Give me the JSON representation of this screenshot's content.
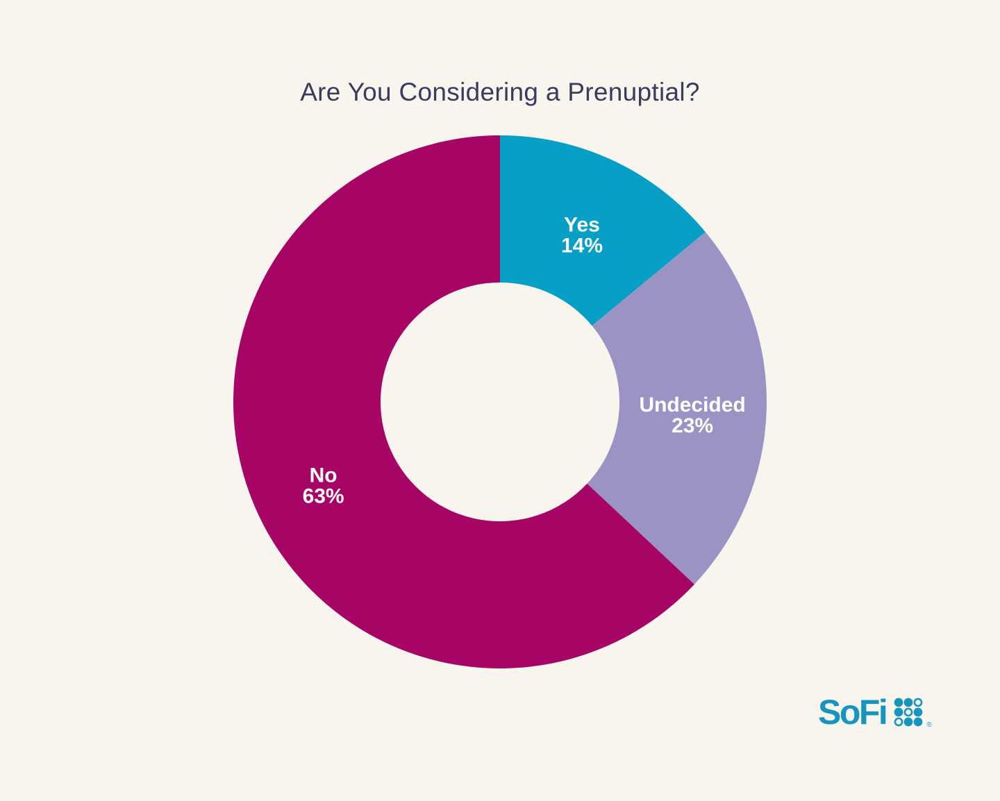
{
  "page": {
    "background_color": "#F8F5EF"
  },
  "chart_data": {
    "type": "pie",
    "subtype": "donut",
    "title": "Are You Considering a Prenuptial?",
    "title_color": "#3B3B5E",
    "categories": [
      "Yes",
      "Undecided",
      "No"
    ],
    "values": [
      14,
      23,
      63
    ],
    "value_labels": [
      "14%",
      "23%",
      "63%"
    ],
    "colors": [
      "#089FC6",
      "#9A93C4",
      "#A70566"
    ],
    "start_angle_deg": 0,
    "clockwise": true,
    "inner_radius_ratio": 0.448,
    "label_radius_ratio": 0.722,
    "label_color": "#FFFFFF",
    "legend": "none",
    "grid": "off"
  },
  "logo": {
    "text": "SoFi",
    "color": "#1695BD",
    "dots": [
      [
        1,
        1,
        0
      ],
      [
        1,
        0,
        1
      ],
      [
        0,
        1,
        1
      ]
    ],
    "registered": "®"
  }
}
